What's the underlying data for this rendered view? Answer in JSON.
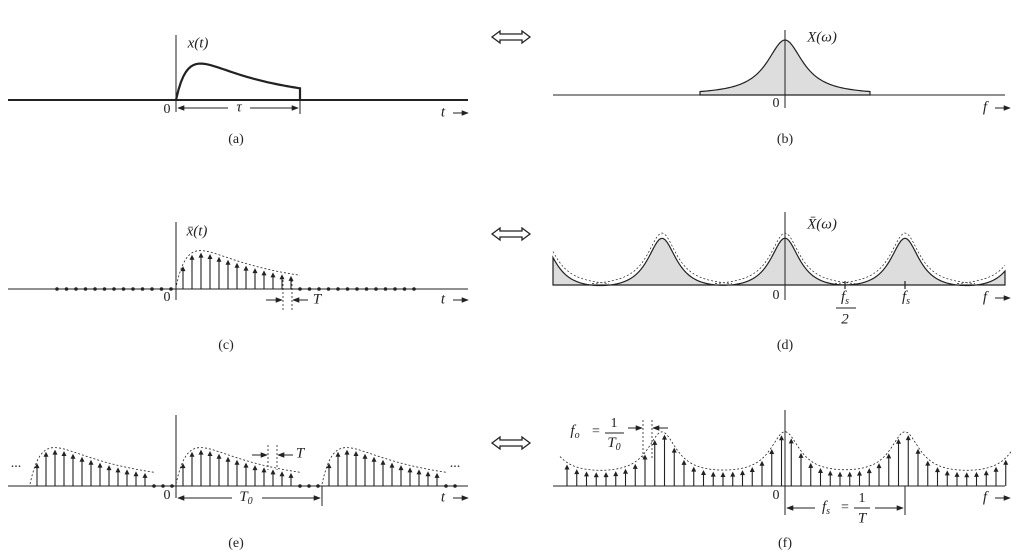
{
  "panels": {
    "a": {
      "caption": "(a)",
      "function": "x(t)",
      "origin": "0",
      "width": "τ",
      "axis": "t"
    },
    "b": {
      "caption": "(b)",
      "function": "X(ω)",
      "origin": "0",
      "axis": "f"
    },
    "c": {
      "caption": "(c)",
      "function": "x̄(t)",
      "origin": "0",
      "spacing": "T",
      "axis": "t"
    },
    "d": {
      "caption": "(d)",
      "function": "X̄(ω)",
      "origin": "0",
      "half_rate": {
        "numerator": {
          "base": "f",
          "sub": "s"
        },
        "denominator": "2"
      },
      "rate": {
        "base": "f",
        "sub": "s"
      },
      "axis": "f"
    },
    "e": {
      "caption": "(e)",
      "origin": "0",
      "spacing": "T",
      "period": {
        "base": "T",
        "sub": "0"
      },
      "continues_left": "...",
      "continues_right": "...",
      "axis": "t"
    },
    "f": {
      "caption": "(f)",
      "origin": "0",
      "axis": "f",
      "resolution": {
        "symbol": {
          "base": "f",
          "sub": "o"
        },
        "equals": "=",
        "numerator": "1",
        "denominator": {
          "base": "T",
          "sub": "0"
        }
      },
      "rate": {
        "symbol": {
          "base": "f",
          "sub": "s"
        },
        "equals": "=",
        "numerator": "1",
        "denominator": "T"
      }
    }
  }
}
